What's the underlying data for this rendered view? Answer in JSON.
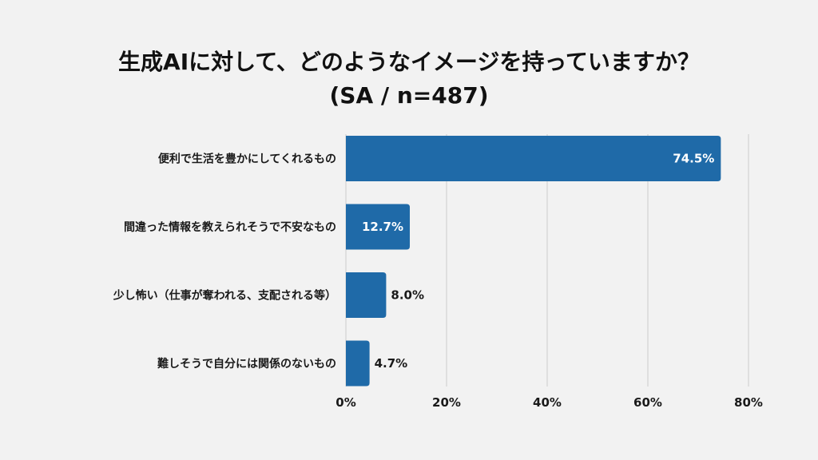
{
  "chart_data": {
    "type": "bar",
    "orientation": "horizontal",
    "title": "生成AIに対して、どのようなイメージを持っていますか？",
    "subtitle": "(SA / n=487)",
    "categories": [
      "便利で生活を豊かにしてくれるもの",
      "間違った情報を教えられそうで不安なもの",
      "少し怖い（仕事が奪われる、支配される等）",
      "難しそうで自分には関係のないもの"
    ],
    "values": [
      74.5,
      12.7,
      8.0,
      4.7
    ],
    "data_labels": [
      "74.5%",
      "12.7%",
      "8.0%",
      "4.7%"
    ],
    "xlim": [
      0,
      80
    ],
    "xticks": [
      0,
      20,
      40,
      60,
      80
    ],
    "xtick_labels": [
      "0%",
      "20%",
      "40%",
      "60%",
      "80%"
    ],
    "grid": true,
    "bar_color": "#1f6aa8",
    "grid_color": "#cccccc",
    "label_inside_color": "#ffffff",
    "label_outside_color": "#1a1a1a"
  }
}
